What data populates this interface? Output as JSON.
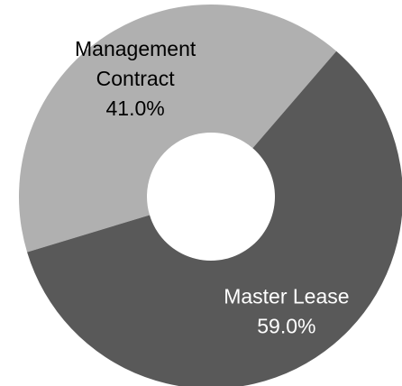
{
  "chart_data": {
    "type": "donut",
    "categories": [
      "Management Contract",
      "Master Lease"
    ],
    "values": [
      41.0,
      59.0
    ],
    "value_labels": [
      "41.0%",
      "59.0%"
    ],
    "colors": [
      "#b0b0b0",
      "#595959"
    ],
    "label_colors": [
      "#000000",
      "#ffffff"
    ]
  }
}
